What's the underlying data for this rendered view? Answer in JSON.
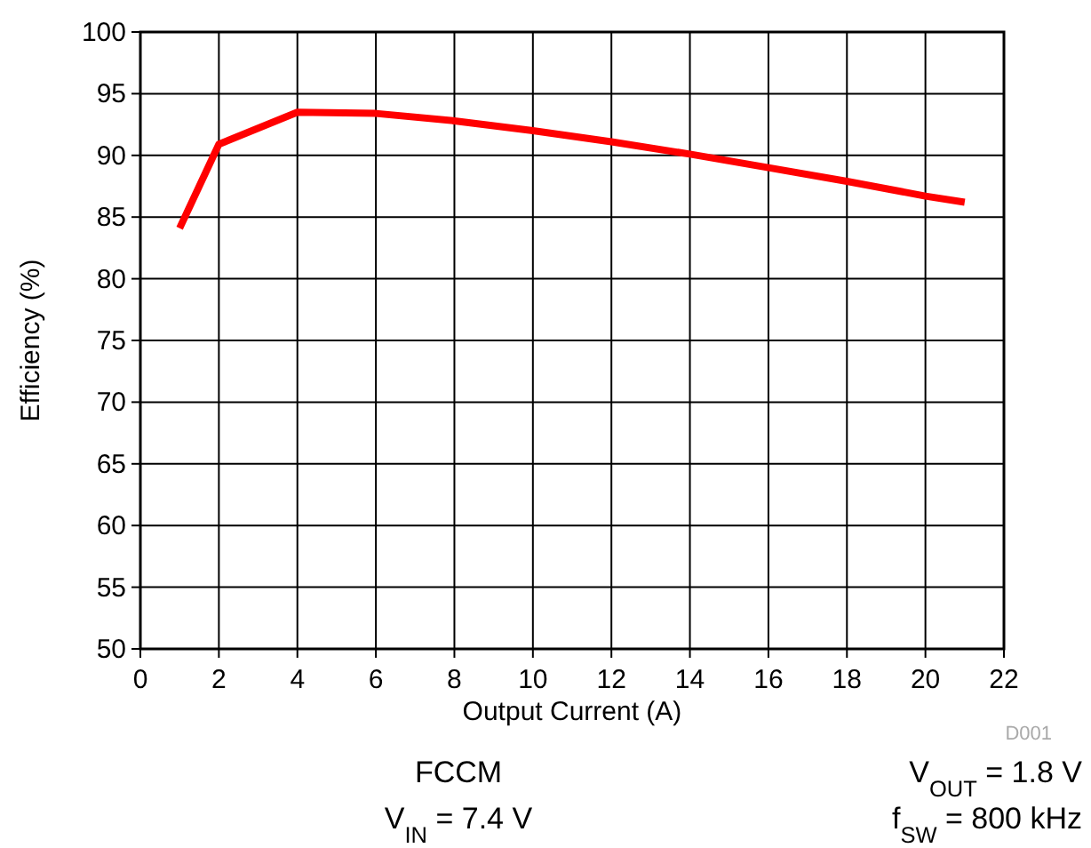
{
  "chart_data": {
    "type": "line",
    "xlabel": "Output Current (A)",
    "ylabel": "Efficiency (%)",
    "x": [
      1,
      2,
      4,
      6,
      8,
      10,
      12,
      14,
      16,
      18,
      20,
      21
    ],
    "series": [
      {
        "color": "#ff0000",
        "values": [
          84.1,
          90.9,
          93.5,
          93.4,
          92.8,
          92.0,
          91.1,
          90.1,
          89.0,
          87.9,
          86.7,
          86.2
        ]
      }
    ],
    "xlim": [
      0,
      22
    ],
    "xticks": [
      0,
      2,
      4,
      6,
      8,
      10,
      12,
      14,
      16,
      18,
      20,
      22
    ],
    "ylim": [
      50,
      100
    ],
    "yticks": [
      50,
      55,
      60,
      65,
      70,
      75,
      80,
      85,
      90,
      95,
      100
    ],
    "grid": true,
    "marker": "none",
    "line_style": "solid",
    "annotations": [
      "D001",
      "FCCM",
      "V$_{IN}$ = 7.4 V",
      "V$_{OUT}$ = 1.8 V",
      "f$_{SW}$ = 800 kHz"
    ]
  }
}
